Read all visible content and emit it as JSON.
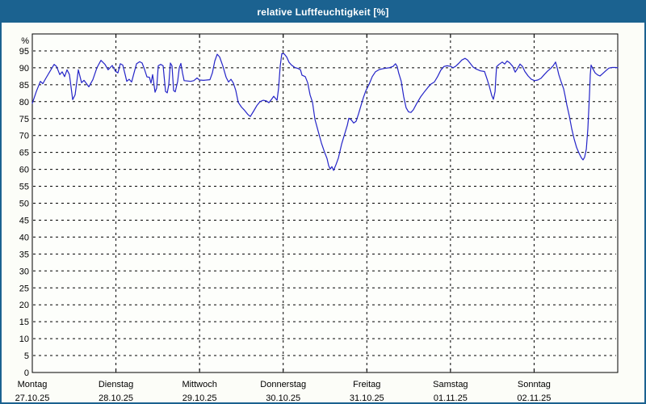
{
  "window": {
    "title": "relative Luftfeuchtigkeit [%]"
  },
  "colors": {
    "titlebar_bg": "#1b6290",
    "titlebar_text": "#ffffff",
    "frame": "#1b6290",
    "window_bg": "#fcfdf8",
    "plot_bg": "#fdfefb",
    "axis": "#000000",
    "grid": "#000000",
    "line": "#2424c8"
  },
  "chart_data": {
    "type": "line",
    "title": "relative Luftfeuchtigkeit [%]",
    "unit_label": "%",
    "ylim": [
      0,
      100
    ],
    "ytick_min": 0,
    "ytick_max": 95,
    "ytick_step": 5,
    "grid": "dashed",
    "legend": "none",
    "x_axis": {
      "span_days": 7,
      "days": [
        {
          "label": "Montag",
          "date": "27.10.25"
        },
        {
          "label": "Dienstag",
          "date": "28.10.25"
        },
        {
          "label": "Mittwoch",
          "date": "29.10.25"
        },
        {
          "label": "Donnerstag",
          "date": "30.10.25"
        },
        {
          "label": "Freitag",
          "date": "31.10.25"
        },
        {
          "label": "Samstag",
          "date": "01.11.25"
        },
        {
          "label": "Sonntag",
          "date": "02.11.25"
        }
      ]
    },
    "series": [
      {
        "name": "relative Luftfeuchtigkeit",
        "color": "#2424c8",
        "x_unit": "days_from_start",
        "points": [
          [
            0.0,
            79.5
          ],
          [
            0.048,
            83.0
          ],
          [
            0.097,
            86.0
          ],
          [
            0.126,
            85.3
          ],
          [
            0.164,
            87.0
          ],
          [
            0.212,
            89.0
          ],
          [
            0.261,
            91.0
          ],
          [
            0.29,
            90.4
          ],
          [
            0.328,
            88.0
          ],
          [
            0.357,
            88.8
          ],
          [
            0.386,
            87.4
          ],
          [
            0.415,
            89.4
          ],
          [
            0.444,
            88.0
          ],
          [
            0.483,
            80.6
          ],
          [
            0.512,
            82.0
          ],
          [
            0.55,
            89.4
          ],
          [
            0.589,
            85.6
          ],
          [
            0.618,
            86.3
          ],
          [
            0.676,
            84.4
          ],
          [
            0.724,
            86.5
          ],
          [
            0.772,
            90.0
          ],
          [
            0.821,
            92.2
          ],
          [
            0.869,
            91.0
          ],
          [
            0.907,
            89.4
          ],
          [
            0.956,
            90.7
          ],
          [
            0.994,
            89.0
          ],
          [
            1.023,
            88.5
          ],
          [
            1.052,
            91.2
          ],
          [
            1.081,
            90.8
          ],
          [
            1.11,
            88.0
          ],
          [
            1.13,
            86.0
          ],
          [
            1.159,
            86.6
          ],
          [
            1.188,
            85.8
          ],
          [
            1.217,
            88.5
          ],
          [
            1.246,
            91.2
          ],
          [
            1.284,
            91.8
          ],
          [
            1.313,
            91.4
          ],
          [
            1.342,
            89.5
          ],
          [
            1.371,
            87.3
          ],
          [
            1.4,
            87.2
          ],
          [
            1.419,
            85.5
          ],
          [
            1.439,
            88.0
          ],
          [
            1.468,
            82.8
          ],
          [
            1.487,
            84.0
          ],
          [
            1.506,
            90.6
          ],
          [
            1.535,
            91.0
          ],
          [
            1.564,
            90.6
          ],
          [
            1.593,
            83.0
          ],
          [
            1.613,
            82.6
          ],
          [
            1.632,
            85.0
          ],
          [
            1.651,
            91.4
          ],
          [
            1.67,
            90.6
          ],
          [
            1.69,
            83.3
          ],
          [
            1.709,
            82.9
          ],
          [
            1.738,
            86.0
          ],
          [
            1.757,
            90.0
          ],
          [
            1.777,
            91.3
          ],
          [
            1.796,
            88.5
          ],
          [
            1.815,
            86.2
          ],
          [
            1.854,
            86.1
          ],
          [
            1.892,
            86.0
          ],
          [
            1.931,
            86.2
          ],
          [
            1.97,
            87.0
          ],
          [
            1.999,
            86.4
          ],
          [
            2.047,
            86.3
          ],
          [
            2.086,
            86.4
          ],
          [
            2.124,
            86.5
          ],
          [
            2.153,
            88.5
          ],
          [
            2.182,
            92.0
          ],
          [
            2.211,
            94.0
          ],
          [
            2.24,
            93.2
          ],
          [
            2.279,
            90.5
          ],
          [
            2.317,
            87.2
          ],
          [
            2.346,
            85.8
          ],
          [
            2.375,
            86.6
          ],
          [
            2.404,
            85.5
          ],
          [
            2.433,
            83.3
          ],
          [
            2.462,
            79.8
          ],
          [
            2.501,
            78.4
          ],
          [
            2.539,
            77.4
          ],
          [
            2.578,
            76.2
          ],
          [
            2.607,
            75.6
          ],
          [
            2.646,
            77.2
          ],
          [
            2.684,
            78.8
          ],
          [
            2.723,
            80.0
          ],
          [
            2.762,
            80.4
          ],
          [
            2.8,
            80.2
          ],
          [
            2.829,
            79.7
          ],
          [
            2.858,
            80.6
          ],
          [
            2.887,
            81.6
          ],
          [
            2.906,
            81.0
          ],
          [
            2.926,
            80.4
          ],
          [
            2.945,
            84.0
          ],
          [
            2.964,
            90.5
          ],
          [
            2.983,
            94.2
          ],
          [
            3.012,
            94.1
          ],
          [
            3.041,
            93.2
          ],
          [
            3.07,
            91.6
          ],
          [
            3.099,
            90.8
          ],
          [
            3.138,
            90.1
          ],
          [
            3.177,
            89.8
          ],
          [
            3.206,
            89.4
          ],
          [
            3.225,
            87.8
          ],
          [
            3.263,
            87.4
          ],
          [
            3.292,
            85.6
          ],
          [
            3.321,
            82.0
          ],
          [
            3.35,
            79.8
          ],
          [
            3.379,
            74.8
          ],
          [
            3.418,
            71.3
          ],
          [
            3.457,
            67.8
          ],
          [
            3.495,
            65.0
          ],
          [
            3.524,
            63.2
          ],
          [
            3.544,
            61.0
          ],
          [
            3.563,
            60.1
          ],
          [
            3.582,
            60.8
          ],
          [
            3.602,
            59.7
          ],
          [
            3.631,
            61.4
          ],
          [
            3.66,
            63.4
          ],
          [
            3.698,
            67.4
          ],
          [
            3.737,
            70.6
          ],
          [
            3.766,
            73.0
          ],
          [
            3.785,
            75.1
          ],
          [
            3.814,
            74.6
          ],
          [
            3.843,
            73.7
          ],
          [
            3.872,
            74.2
          ],
          [
            3.901,
            76.4
          ],
          [
            3.93,
            78.8
          ],
          [
            3.959,
            81.2
          ],
          [
            3.988,
            83.2
          ],
          [
            4.027,
            85.1
          ],
          [
            4.065,
            87.4
          ],
          [
            4.102,
            88.8
          ],
          [
            4.15,
            89.5
          ],
          [
            4.208,
            89.8
          ],
          [
            4.266,
            90.0
          ],
          [
            4.314,
            90.4
          ],
          [
            4.343,
            91.2
          ],
          [
            4.362,
            90.4
          ],
          [
            4.382,
            88.4
          ],
          [
            4.411,
            86.0
          ],
          [
            4.44,
            81.5
          ],
          [
            4.469,
            78.2
          ],
          [
            4.498,
            77.0
          ],
          [
            4.527,
            76.8
          ],
          [
            4.556,
            77.6
          ],
          [
            4.595,
            79.4
          ],
          [
            4.643,
            81.4
          ],
          [
            4.691,
            83.0
          ],
          [
            4.73,
            84.2
          ],
          [
            4.768,
            85.2
          ],
          [
            4.807,
            85.8
          ],
          [
            4.846,
            87.4
          ],
          [
            4.885,
            89.3
          ],
          [
            4.923,
            90.4
          ],
          [
            4.962,
            90.6
          ],
          [
            5.001,
            90.4
          ],
          [
            5.03,
            90.0
          ],
          [
            5.059,
            90.4
          ],
          [
            5.098,
            91.3
          ],
          [
            5.136,
            92.3
          ],
          [
            5.175,
            92.8
          ],
          [
            5.204,
            92.3
          ],
          [
            5.233,
            91.4
          ],
          [
            5.272,
            90.2
          ],
          [
            5.31,
            89.6
          ],
          [
            5.359,
            89.1
          ],
          [
            5.407,
            88.9
          ],
          [
            5.436,
            86.8
          ],
          [
            5.465,
            84.5
          ],
          [
            5.494,
            81.8
          ],
          [
            5.513,
            80.7
          ],
          [
            5.533,
            83.0
          ],
          [
            5.542,
            87.0
          ],
          [
            5.552,
            90.3
          ],
          [
            5.581,
            91.0
          ],
          [
            5.619,
            91.7
          ],
          [
            5.648,
            91.1
          ],
          [
            5.677,
            92.0
          ],
          [
            5.706,
            91.5
          ],
          [
            5.745,
            90.4
          ],
          [
            5.774,
            88.7
          ],
          [
            5.803,
            89.8
          ],
          [
            5.832,
            91.1
          ],
          [
            5.861,
            90.4
          ],
          [
            5.89,
            88.9
          ],
          [
            5.928,
            87.6
          ],
          [
            5.967,
            86.6
          ],
          [
            6.006,
            86.2
          ],
          [
            6.044,
            86.4
          ],
          [
            6.083,
            86.9
          ],
          [
            6.121,
            88.0
          ],
          [
            6.16,
            89.0
          ],
          [
            6.199,
            89.8
          ],
          [
            6.228,
            90.6
          ],
          [
            6.257,
            91.7
          ],
          [
            6.276,
            90.0
          ],
          [
            6.295,
            88.0
          ],
          [
            6.324,
            85.8
          ],
          [
            6.353,
            83.8
          ],
          [
            6.372,
            81.5
          ],
          [
            6.392,
            79.0
          ],
          [
            6.421,
            75.8
          ],
          [
            6.45,
            72.0
          ],
          [
            6.479,
            69.0
          ],
          [
            6.508,
            66.5
          ],
          [
            6.537,
            64.8
          ],
          [
            6.566,
            63.4
          ],
          [
            6.585,
            62.8
          ],
          [
            6.604,
            63.6
          ],
          [
            6.624,
            66.0
          ],
          [
            6.643,
            72.0
          ],
          [
            6.662,
            82.0
          ],
          [
            6.672,
            88.0
          ],
          [
            6.681,
            90.8
          ],
          [
            6.701,
            89.8
          ],
          [
            6.73,
            88.5
          ],
          [
            6.759,
            87.9
          ],
          [
            6.788,
            87.6
          ],
          [
            6.817,
            88.2
          ],
          [
            6.856,
            89.1
          ],
          [
            6.894,
            89.9
          ],
          [
            6.933,
            90.1
          ],
          [
            6.972,
            90.1
          ],
          [
            7.0,
            90.0
          ]
        ]
      }
    ]
  }
}
